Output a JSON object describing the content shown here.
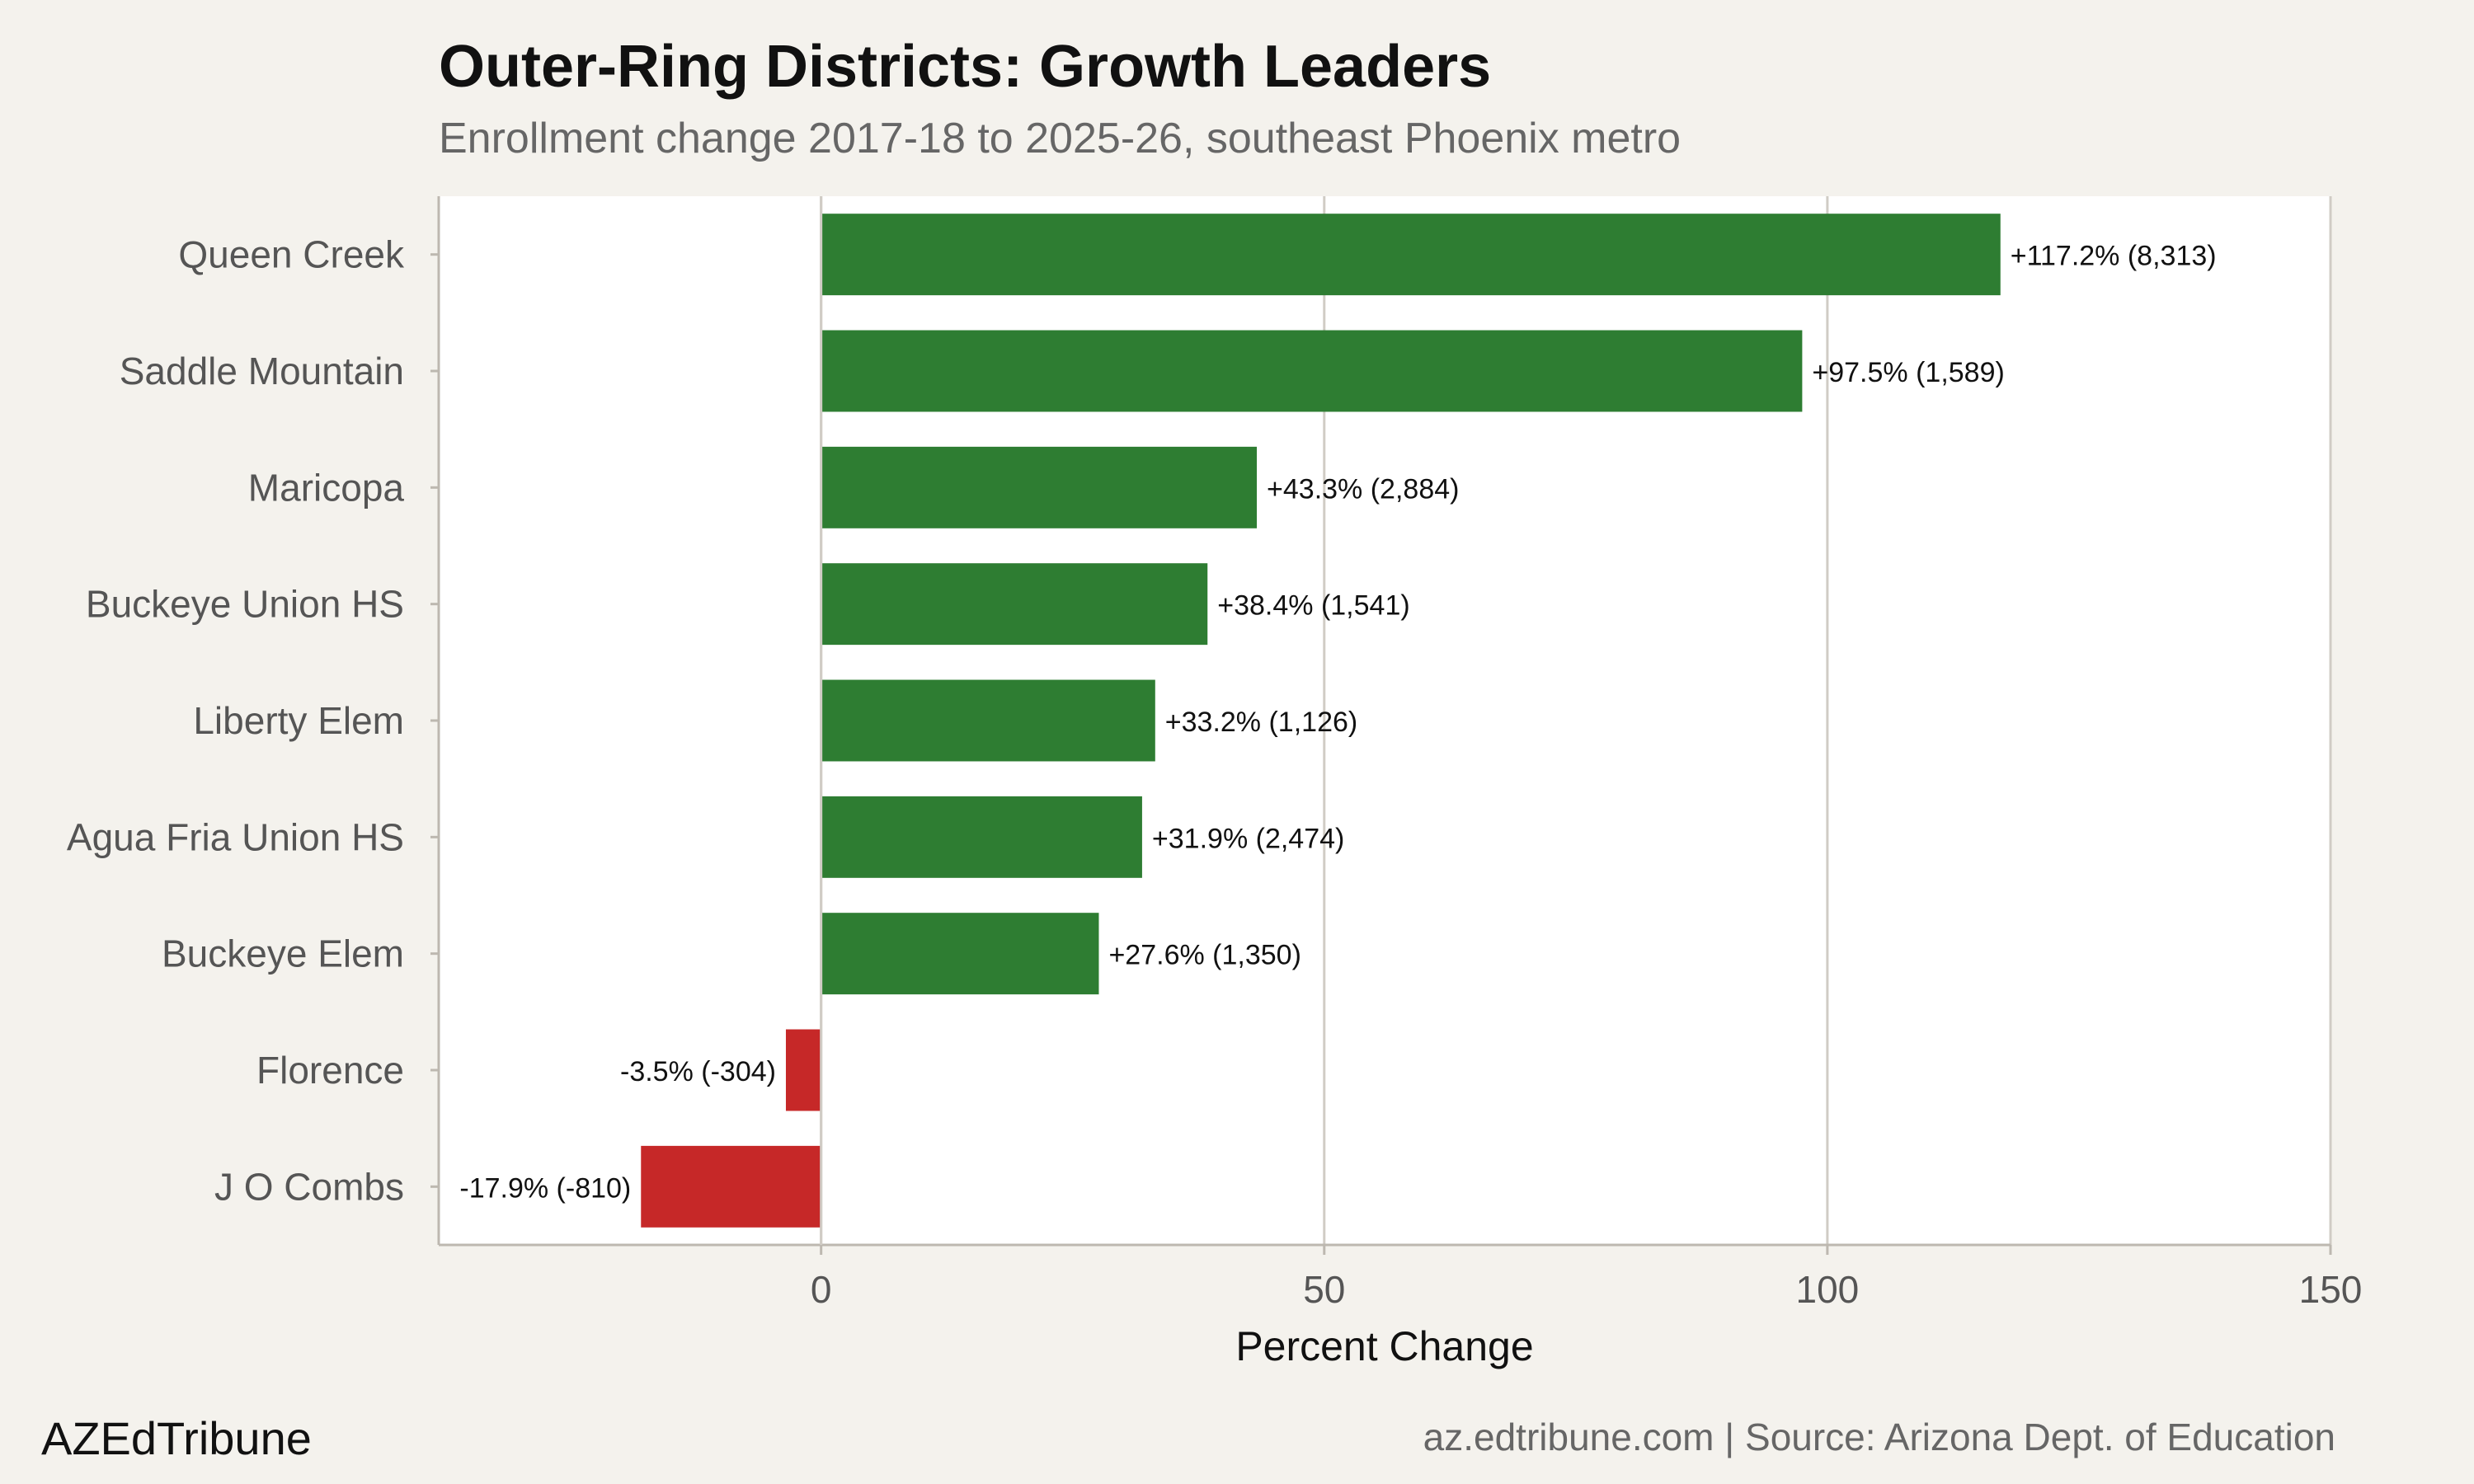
{
  "chart_data": {
    "type": "bar",
    "orientation": "horizontal",
    "title": "Outer-Ring Districts: Growth Leaders",
    "subtitle": "Enrollment change 2017-18 to 2025-26, southeast Phoenix metro",
    "xlabel": "Percent Change",
    "ylabel": "",
    "xlim": [
      -38,
      150
    ],
    "xticks": [
      0,
      50,
      100,
      150
    ],
    "grid": "vertical",
    "categories": [
      "Queen Creek",
      "Saddle Mountain",
      "Maricopa",
      "Buckeye Union HS",
      "Liberty Elem",
      "Agua Fria Union HS",
      "Buckeye Elem",
      "Florence",
      "J O Combs"
    ],
    "values": [
      117.2,
      97.5,
      43.3,
      38.4,
      33.2,
      31.9,
      27.6,
      -3.5,
      -17.9
    ],
    "data_labels": [
      "+117.2% (8,313)",
      "+97.5% (1,589)",
      "+43.3% (2,884)",
      "+38.4% (1,541)",
      "+33.2% (1,126)",
      "+31.9% (2,474)",
      "+27.6% (1,350)",
      "-3.5% (-304)",
      "-17.9% (-810)"
    ],
    "colors": {
      "positive": "#2e7d32",
      "negative": "#c62828",
      "panel": "#ffffff",
      "background": "#f4f2ed",
      "grid": "#d0ccc5"
    }
  },
  "footer": {
    "brand": "AZEdTribune",
    "source": "az.edtribune.com | Source: Arizona Dept. of Education"
  }
}
